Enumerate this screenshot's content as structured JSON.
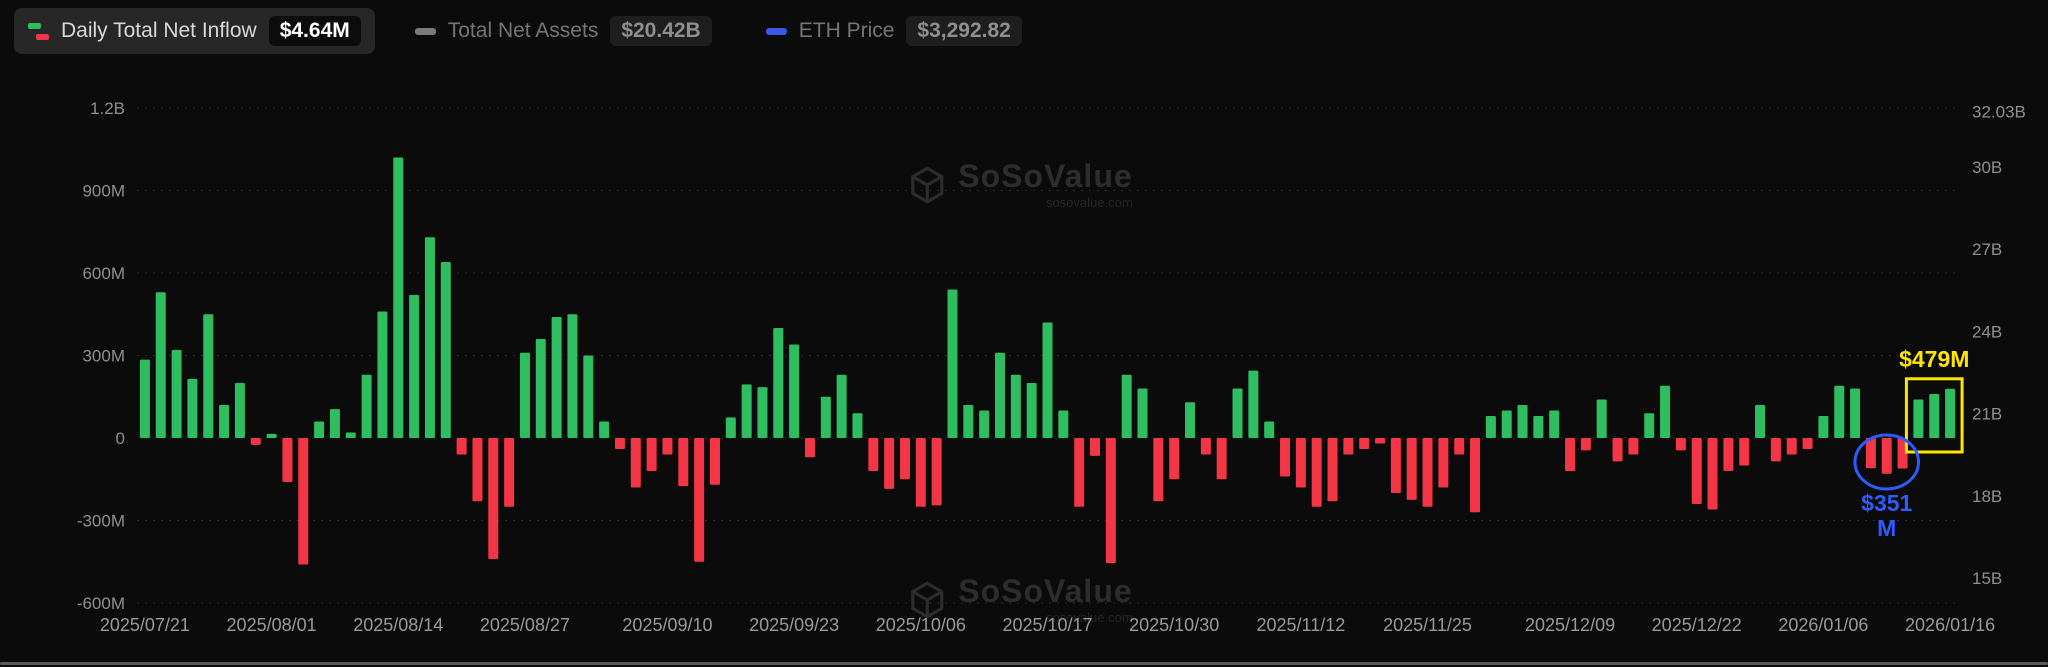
{
  "header": {
    "legend": [
      {
        "label": "Daily Total Net Inflow",
        "value": "$4.64M",
        "icon": "inflow-outflow-icon",
        "active": true
      },
      {
        "label": "Total Net Assets",
        "value": "$20.42B",
        "icon": "gray-dash-icon",
        "active": false
      },
      {
        "label": "ETH Price",
        "value": "$3,292.82",
        "icon": "blue-dash-icon",
        "active": false
      }
    ]
  },
  "watermark": {
    "text": "SoSoValue",
    "domain": "sosovalue.com"
  },
  "chart_data": {
    "type": "bar",
    "title": "Daily Total Net Inflow",
    "unit": "millions USD",
    "values": [
      285,
      530,
      320,
      215,
      450,
      120,
      200,
      -25,
      15,
      -160,
      -460,
      60,
      105,
      20,
      230,
      460,
      1020,
      520,
      730,
      640,
      -60,
      -230,
      -440,
      -250,
      310,
      360,
      440,
      450,
      300,
      60,
      -40,
      -180,
      -120,
      -60,
      -175,
      -450,
      -170,
      75,
      195,
      185,
      400,
      340,
      -70,
      150,
      230,
      90,
      -120,
      -185,
      -150,
      -250,
      -245,
      540,
      120,
      100,
      310,
      230,
      200,
      420,
      100,
      -250,
      -65,
      -455,
      230,
      180,
      -230,
      -150,
      130,
      -60,
      -150,
      180,
      245,
      60,
      -140,
      -180,
      -250,
      -230,
      -60,
      -40,
      -20,
      -200,
      -225,
      -250,
      -180,
      -60,
      -270,
      80,
      100,
      120,
      80,
      100,
      -120,
      -45,
      140,
      -85,
      -60,
      90,
      190,
      -45,
      -240,
      -260,
      -120,
      -100,
      120,
      -85,
      -60,
      -40,
      80,
      190,
      180,
      -110,
      -130,
      -111,
      140,
      160,
      179
    ],
    "left_axis": {
      "min": -600,
      "max": 1200,
      "ticks": [
        {
          "label": "1.2B",
          "value": 1200
        },
        {
          "label": "900M",
          "value": 900
        },
        {
          "label": "600M",
          "value": 600
        },
        {
          "label": "300M",
          "value": 300
        },
        {
          "label": "0",
          "value": 0
        },
        {
          "label": "-300M",
          "value": -300
        },
        {
          "label": "-600M",
          "value": -600
        }
      ]
    },
    "right_axis": {
      "series": "Total Net Assets (B USD)",
      "ticks": [
        {
          "label": "32.03B",
          "value": 32.03
        },
        {
          "label": "30B",
          "value": 30
        },
        {
          "label": "27B",
          "value": 27
        },
        {
          "label": "24B",
          "value": 24
        },
        {
          "label": "21B",
          "value": 21
        },
        {
          "label": "18B",
          "value": 18
        },
        {
          "label": "15B",
          "value": 15
        }
      ]
    },
    "x_ticks": [
      "2025/07/21",
      "2025/08/01",
      "2025/08/14",
      "2025/08/27",
      "2025/09/10",
      "2025/09/23",
      "2025/10/06",
      "2025/10/17",
      "2025/10/30",
      "2025/11/12",
      "2025/11/25",
      "2025/12/09",
      "2025/12/22",
      "2026/01/06",
      "2026/01/16"
    ],
    "colors": {
      "positive": "#2ebd5f",
      "negative": "#f23645",
      "grid": "#2a2a2a",
      "axis_text": "#8f8f8f",
      "x_text": "#9a9a9a",
      "annotation_yellow": "#ffe500",
      "annotation_blue": "#2e5bff"
    },
    "grid": true,
    "legend_position": "top-left",
    "annotations": {
      "box": {
        "label": "$479M",
        "start_index": 112,
        "end_index": 114
      },
      "ellipse": {
        "label": "$351M",
        "label_lines": [
          "$351",
          "M"
        ],
        "start_index": 109,
        "end_index": 111
      }
    }
  }
}
